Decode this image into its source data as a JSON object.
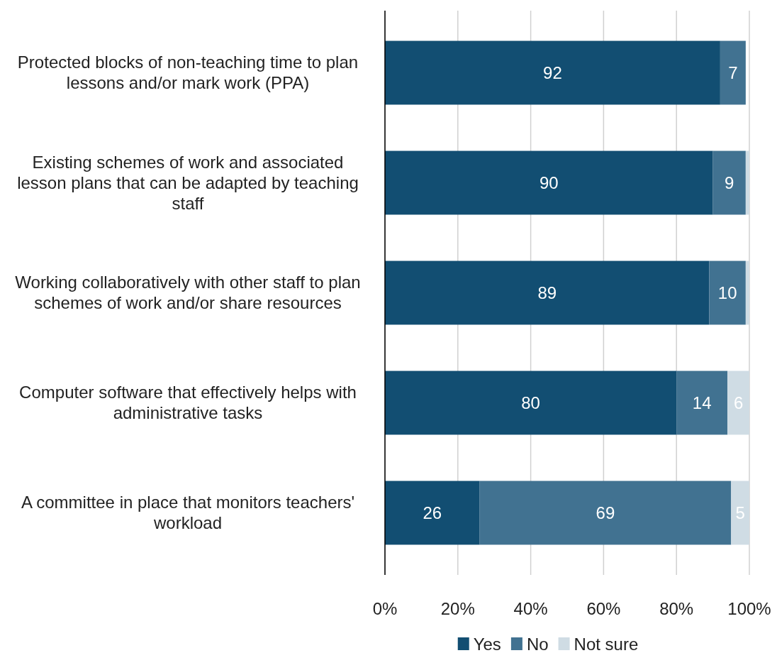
{
  "chart_data": {
    "type": "bar",
    "orientation": "horizontal",
    "stacked": true,
    "categories": [
      "Protected blocks of non-teaching time to plan lessons and/or mark work (PPA)",
      "Existing schemes of work and associated lesson plans that can be adapted by teaching staff",
      "Working collaboratively with other staff to plan schemes of work and/or share resources",
      "Computer software that effectively helps with administrative tasks",
      "A committee in place that monitors teachers' workload"
    ],
    "series": [
      {
        "name": "Yes",
        "color": "#124e72",
        "values": [
          92,
          90,
          89,
          80,
          26
        ],
        "value_labels": [
          "92",
          "90",
          "89",
          "80",
          "26"
        ]
      },
      {
        "name": "No",
        "color": "#417291",
        "values": [
          7,
          9,
          10,
          14,
          69
        ],
        "value_labels": [
          "7",
          "9",
          "10",
          "14",
          "69"
        ]
      },
      {
        "name": "Not sure",
        "color": "#cfdce4",
        "values": [
          0,
          1,
          1,
          6,
          5
        ],
        "value_labels": [
          null,
          null,
          null,
          "6",
          "5"
        ]
      }
    ],
    "xlim": [
      0,
      100
    ],
    "xticks": [
      {
        "value": 0,
        "label": "0%"
      },
      {
        "value": 20,
        "label": "20%"
      },
      {
        "value": 40,
        "label": "40%"
      },
      {
        "value": 60,
        "label": "60%"
      },
      {
        "value": 80,
        "label": "80%"
      },
      {
        "value": 100,
        "label": "100%"
      }
    ],
    "grid": "x",
    "legend": "bottom"
  }
}
